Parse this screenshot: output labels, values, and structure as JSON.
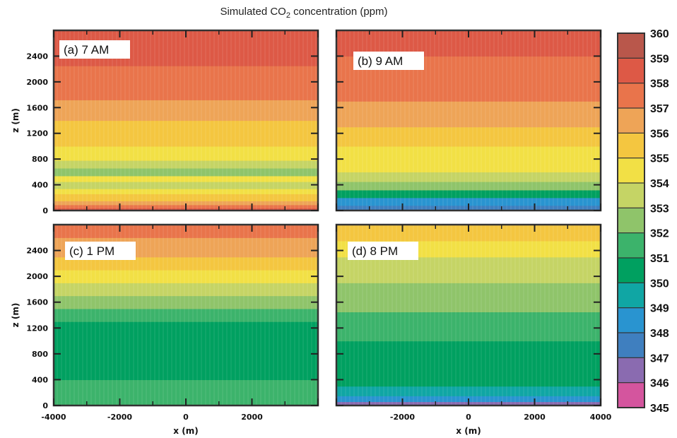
{
  "title_prefix": "Simulated CO",
  "title_sub": "2",
  "title_suffix": " concentration (ppm)",
  "chart_data": {
    "type": "heatmap",
    "colorbar": {
      "levels": [
        345,
        346,
        347,
        348,
        349,
        350,
        351,
        352,
        353,
        354,
        355,
        356,
        357,
        358,
        359,
        360
      ],
      "level_labels": [
        "360",
        "359",
        "358",
        "357",
        "356",
        "355",
        "354",
        "353",
        "352",
        "351",
        "350",
        "349",
        "348",
        "347",
        "346",
        "345"
      ],
      "colors": [
        "#d4559e",
        "#8a6bb0",
        "#3f7fbf",
        "#2994d0",
        "#10a6a4",
        "#00a060",
        "#3cb36b",
        "#8fc46a",
        "#c5d465",
        "#f2e045",
        "#f4c640",
        "#eea457",
        "#e9744b",
        "#dd5946",
        "#b9574b"
      ]
    },
    "xlabel": "x (m)",
    "ylabel": "z (m)",
    "xlim": [
      -4000,
      4000
    ],
    "ylim": [
      0,
      2800
    ],
    "xticks": [
      -4000,
      -2000,
      0,
      2000,
      4000
    ],
    "xtick_labels_left": [
      "-4000",
      "-2000",
      "0",
      "2000"
    ],
    "xtick_labels_right": [
      "-2000",
      "0",
      "2000",
      "4000"
    ],
    "yticks": [
      0,
      400,
      800,
      1200,
      1600,
      2000,
      2400
    ],
    "ytick_labels": [
      "0",
      "400",
      "800",
      "1200",
      "1600",
      "2000",
      "2400"
    ],
    "panels": [
      {
        "label": "(a) 7 AM",
        "bands": [
          {
            "z0": 0,
            "z1": 40,
            "value": 358
          },
          {
            "z0": 40,
            "z1": 90,
            "value": 357
          },
          {
            "z0": 90,
            "z1": 150,
            "value": 356
          },
          {
            "z0": 150,
            "z1": 260,
            "value": 355
          },
          {
            "z0": 260,
            "z1": 340,
            "value": 354
          },
          {
            "z0": 340,
            "z1": 450,
            "value": 353
          },
          {
            "z0": 450,
            "z1": 540,
            "value": 354
          },
          {
            "z0": 540,
            "z1": 660,
            "value": 352
          },
          {
            "z0": 660,
            "z1": 780,
            "value": 353
          },
          {
            "z0": 780,
            "z1": 1000,
            "value": 354
          },
          {
            "z0": 1000,
            "z1": 1200,
            "value": 355
          },
          {
            "z0": 1200,
            "z1": 1400,
            "value": 355
          },
          {
            "z0": 1400,
            "z1": 1720,
            "value": 356
          },
          {
            "z0": 1720,
            "z1": 2250,
            "value": 357
          },
          {
            "z0": 2250,
            "z1": 2800,
            "value": 358
          }
        ]
      },
      {
        "label": "(b) 9 AM",
        "bands": [
          {
            "z0": 0,
            "z1": 80,
            "value": 347
          },
          {
            "z0": 80,
            "z1": 200,
            "value": 348
          },
          {
            "z0": 200,
            "z1": 320,
            "value": 350
          },
          {
            "z0": 320,
            "z1": 450,
            "value": 352
          },
          {
            "z0": 450,
            "z1": 600,
            "value": 353
          },
          {
            "z0": 600,
            "z1": 1000,
            "value": 354
          },
          {
            "z0": 1000,
            "z1": 1300,
            "value": 355
          },
          {
            "z0": 1300,
            "z1": 1700,
            "value": 356
          },
          {
            "z0": 1700,
            "z1": 2400,
            "value": 357
          },
          {
            "z0": 2400,
            "z1": 2800,
            "value": 358
          }
        ]
      },
      {
        "label": "(c) 1 PM",
        "bands": [
          {
            "z0": 0,
            "z1": 400,
            "value": 351
          },
          {
            "z0": 400,
            "z1": 1300,
            "value": 350
          },
          {
            "z0": 1300,
            "z1": 1500,
            "value": 351
          },
          {
            "z0": 1500,
            "z1": 1700,
            "value": 352
          },
          {
            "z0": 1700,
            "z1": 1900,
            "value": 353
          },
          {
            "z0": 1900,
            "z1": 2100,
            "value": 354
          },
          {
            "z0": 2100,
            "z1": 2300,
            "value": 355
          },
          {
            "z0": 2300,
            "z1": 2600,
            "value": 356
          },
          {
            "z0": 2600,
            "z1": 2800,
            "value": 357
          }
        ]
      },
      {
        "label": "(d) 8 PM",
        "bands": [
          {
            "z0": 0,
            "z1": 60,
            "value": 346
          },
          {
            "z0": 60,
            "z1": 150,
            "value": 348
          },
          {
            "z0": 150,
            "z1": 300,
            "value": 349
          },
          {
            "z0": 300,
            "z1": 450,
            "value": 350
          },
          {
            "z0": 450,
            "z1": 1000,
            "value": 350
          },
          {
            "z0": 1000,
            "z1": 1450,
            "value": 351
          },
          {
            "z0": 1450,
            "z1": 1900,
            "value": 352
          },
          {
            "z0": 1900,
            "z1": 2300,
            "value": 353
          },
          {
            "z0": 2300,
            "z1": 2550,
            "value": 354
          },
          {
            "z0": 2550,
            "z1": 2800,
            "value": 355
          }
        ]
      }
    ]
  }
}
